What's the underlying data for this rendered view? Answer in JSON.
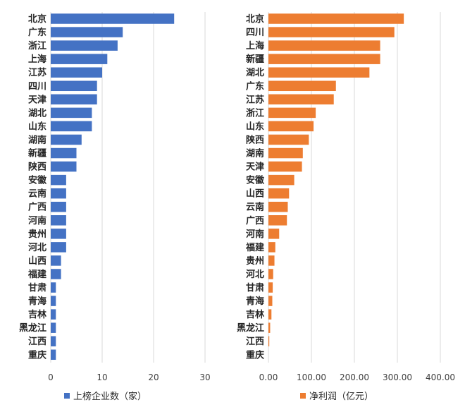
{
  "chart_data": [
    {
      "type": "bar",
      "orientation": "horizontal",
      "categories": [
        "北京",
        "广东",
        "浙江",
        "上海",
        "江苏",
        "四川",
        "天津",
        "湖北",
        "山东",
        "湖南",
        "新疆",
        "陕西",
        "安徽",
        "云南",
        "广西",
        "河南",
        "贵州",
        "河北",
        "山西",
        "福建",
        "甘肃",
        "青海",
        "吉林",
        "黑龙江",
        "江西",
        "重庆"
      ],
      "series": [
        {
          "name": "上榜企业数（家）",
          "color": "#4472C4",
          "values": [
            24,
            14,
            13,
            11,
            10,
            9,
            9,
            8,
            8,
            6,
            5,
            5,
            3,
            3,
            3,
            3,
            3,
            3,
            2,
            2,
            1,
            1,
            1,
            1,
            1,
            1
          ]
        }
      ],
      "xlim": [
        0,
        30
      ],
      "xticks": [
        "0",
        "10",
        "20",
        "30"
      ],
      "xtick_values": [
        0,
        10,
        20,
        30
      ],
      "grid": true,
      "legend": "bottom"
    },
    {
      "type": "bar",
      "orientation": "horizontal",
      "categories": [
        "北京",
        "四川",
        "上海",
        "新疆",
        "湖北",
        "广东",
        "江苏",
        "浙江",
        "山东",
        "陕西",
        "湖南",
        "天津",
        "安徽",
        "山西",
        "云南",
        "广西",
        "河南",
        "福建",
        "贵州",
        "河北",
        "甘肃",
        "青海",
        "吉林",
        "黑龙江",
        "江西",
        "重庆"
      ],
      "series": [
        {
          "name": "净利润（亿元）",
          "color": "#ED7D31",
          "values": [
            315,
            293,
            260,
            260,
            235,
            157,
            152,
            110,
            105,
            94,
            80,
            78,
            60,
            48,
            45,
            43,
            25,
            16,
            14,
            11,
            10,
            9,
            7,
            4,
            2,
            0
          ]
        }
      ],
      "xlim": [
        0,
        400
      ],
      "xticks": [
        "0.00",
        "100.00",
        "200.00",
        "300.00",
        "400.00"
      ],
      "xtick_values": [
        0,
        100,
        200,
        300,
        400
      ],
      "grid": true,
      "legend": "bottom"
    }
  ]
}
